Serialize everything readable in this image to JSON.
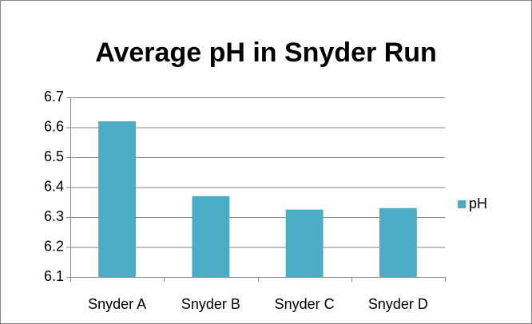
{
  "chart_data": {
    "type": "bar",
    "title": "Average pH in Snyder Run",
    "categories": [
      "Snyder A",
      "Snyder B",
      "Snyder C",
      "Snyder D"
    ],
    "series": [
      {
        "name": "pH",
        "color": "#4bacc6",
        "values": [
          6.62,
          6.37,
          6.325,
          6.33
        ]
      }
    ],
    "ylim": [
      6.1,
      6.7
    ],
    "yticks": [
      6.1,
      6.2,
      6.3,
      6.4,
      6.5,
      6.6,
      6.7
    ],
    "grid": true,
    "legend": "right"
  }
}
